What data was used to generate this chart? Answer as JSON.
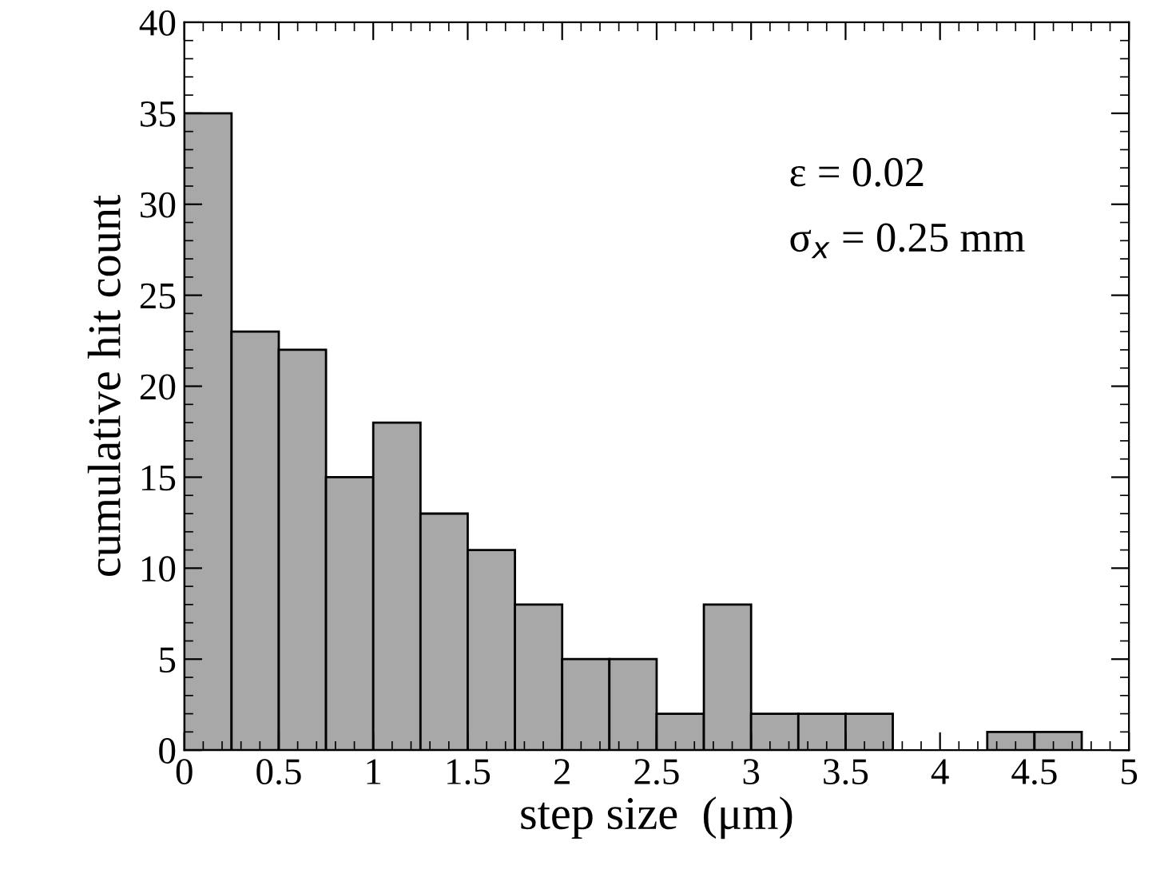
{
  "chart_data": {
    "type": "histogram",
    "xlabel": "step size  (μm)",
    "ylabel": "cumulative hit count",
    "bins": [
      0,
      0.25,
      0.5,
      0.75,
      1,
      1.25,
      1.5,
      1.75,
      2,
      2.25,
      2.5,
      2.75,
      3,
      3.25,
      3.5,
      3.75,
      4,
      4.25,
      4.5,
      4.75,
      5
    ],
    "values": [
      35,
      23,
      22,
      15,
      18,
      13,
      11,
      8,
      5,
      5,
      2,
      8,
      2,
      2,
      2,
      0,
      0,
      1,
      1,
      0
    ],
    "color": "#a8a8a8",
    "xlim": [
      0,
      5
    ],
    "xticks": [
      0,
      0.5,
      1,
      1.5,
      2,
      2.5,
      3,
      3.5,
      4,
      4.5,
      5
    ],
    "ylim": [
      0,
      40
    ],
    "yticks": [
      0,
      5,
      10,
      15,
      20,
      25,
      30,
      35,
      40
    ],
    "annotations": [
      "ε = 0.02",
      "σ$_{x}$ = 0.25 mm"
    ],
    "grid": false,
    "legend": false
  }
}
